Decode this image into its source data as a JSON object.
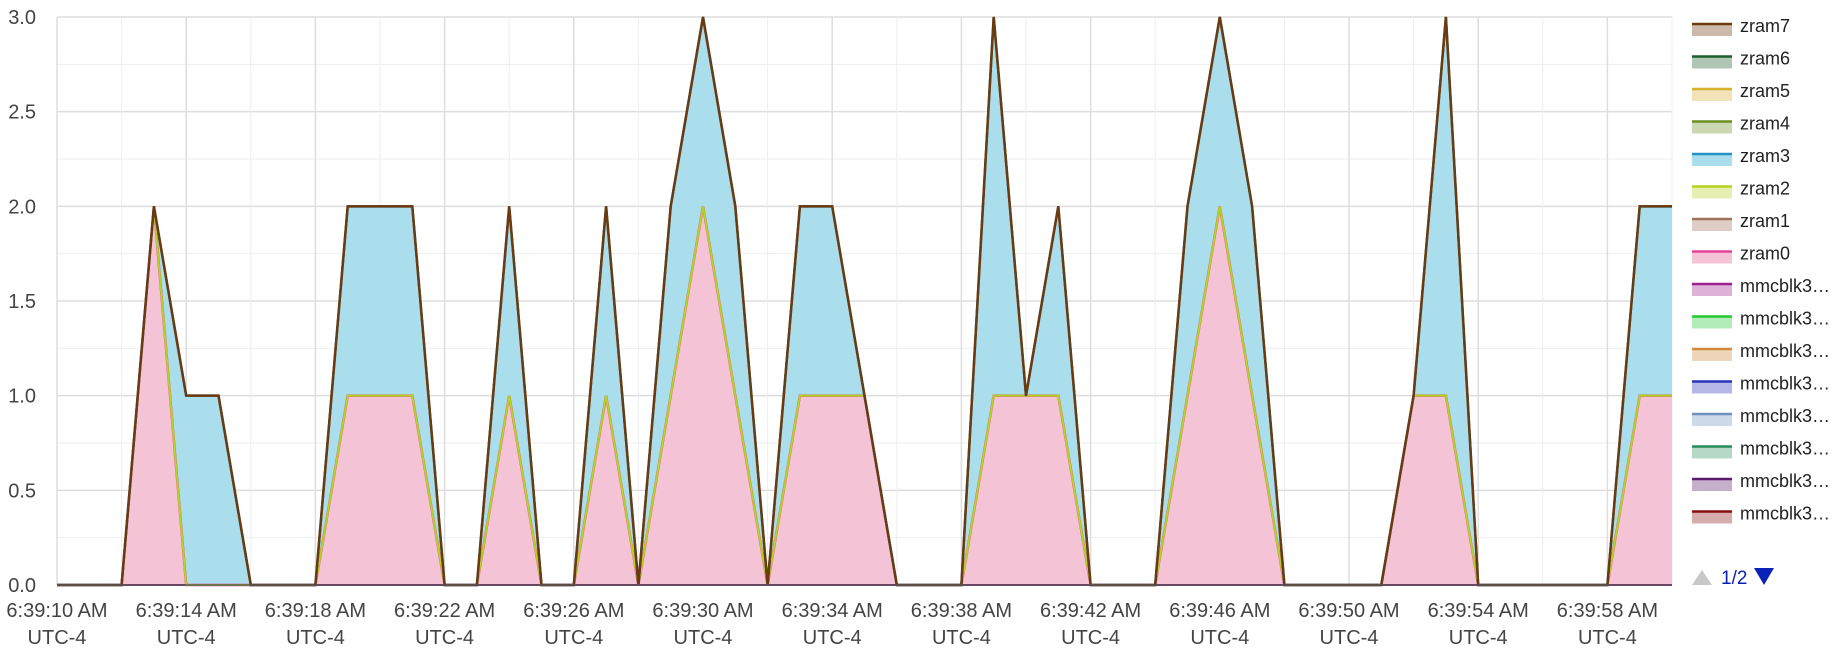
{
  "chart_data": {
    "type": "area",
    "stacked": true,
    "x": [
      "6:39:10",
      "6:39:11",
      "6:39:12",
      "6:39:13",
      "6:39:14",
      "6:39:15",
      "6:39:16",
      "6:39:17",
      "6:39:18",
      "6:39:19",
      "6:39:20",
      "6:39:21",
      "6:39:22",
      "6:39:23",
      "6:39:24",
      "6:39:25",
      "6:39:26",
      "6:39:27",
      "6:39:28",
      "6:39:29",
      "6:39:30",
      "6:39:31",
      "6:39:32",
      "6:39:33",
      "6:39:34",
      "6:39:35",
      "6:39:36",
      "6:39:37",
      "6:39:38",
      "6:39:39",
      "6:39:40",
      "6:39:41",
      "6:39:42",
      "6:39:43",
      "6:39:44",
      "6:39:45",
      "6:39:46",
      "6:39:47",
      "6:39:48",
      "6:39:49",
      "6:39:50",
      "6:39:51",
      "6:39:52",
      "6:39:53",
      "6:39:54",
      "6:39:55",
      "6:39:56",
      "6:39:57",
      "6:39:58",
      "6:39:59",
      "6:40:00"
    ],
    "series": [
      {
        "name": "zram7",
        "color": "#6b3a10",
        "values": [
          0,
          0,
          0,
          0,
          0,
          0,
          0,
          0,
          0,
          0,
          0,
          0,
          0,
          0,
          0,
          0,
          0,
          0,
          0,
          0,
          0,
          0,
          0,
          0,
          0,
          0,
          0,
          0,
          0,
          0,
          0,
          0,
          0,
          0,
          0,
          0,
          0,
          0,
          0,
          0,
          0,
          0,
          0,
          0,
          0,
          0,
          0,
          0,
          0,
          0,
          0
        ]
      },
      {
        "name": "zram6",
        "color": "#1a5c2a",
        "values": [
          0,
          0,
          0,
          0,
          0,
          0,
          0,
          0,
          0,
          0,
          0,
          0,
          0,
          0,
          0,
          0,
          0,
          0,
          0,
          0,
          0,
          0,
          0,
          0,
          0,
          0,
          0,
          0,
          0,
          0,
          0,
          0,
          0,
          0,
          0,
          0,
          0,
          0,
          0,
          0,
          0,
          0,
          0,
          0,
          0,
          0,
          0,
          0,
          0,
          0,
          0
        ]
      },
      {
        "name": "zram5",
        "color": "#d8b030",
        "values": [
          0,
          0,
          0,
          0,
          0,
          0,
          0,
          0,
          0,
          0,
          0,
          0,
          0,
          0,
          0,
          0,
          0,
          0,
          0,
          0,
          0,
          0,
          0,
          0,
          0,
          0,
          0,
          0,
          0,
          0,
          0,
          0,
          0,
          0,
          0,
          0,
          0,
          0,
          0,
          0,
          0,
          0,
          0,
          0,
          0,
          0,
          0,
          0,
          0,
          0,
          0
        ]
      },
      {
        "name": "zram4",
        "color": "#6a8e22",
        "values": [
          0,
          0,
          0,
          0,
          0,
          0,
          0,
          0,
          0,
          0,
          0,
          0,
          0,
          0,
          0,
          0,
          0,
          0,
          0,
          0,
          0,
          0,
          0,
          0,
          0,
          0,
          0,
          0,
          0,
          0,
          0,
          0,
          0,
          0,
          0,
          0,
          0,
          0,
          0,
          0,
          0,
          0,
          0,
          0,
          0,
          0,
          0,
          0,
          0,
          0,
          0
        ]
      },
      {
        "name": "zram3",
        "color": "#2592c8",
        "fill": "#aadeed",
        "values": [
          0,
          0,
          0,
          0,
          1,
          1,
          0,
          0,
          0,
          1,
          1,
          1,
          0,
          0,
          1,
          0,
          0,
          1,
          0,
          1,
          1,
          1,
          0,
          1,
          1,
          0,
          0,
          0,
          0,
          2,
          0,
          1,
          0,
          0,
          0,
          1,
          1,
          1,
          0,
          0,
          0,
          0,
          0,
          2,
          0,
          0,
          0,
          0,
          0,
          1,
          1
        ]
      },
      {
        "name": "zram2",
        "color": "#b8d020",
        "values": [
          0,
          0,
          0,
          0,
          0,
          0,
          0,
          0,
          0,
          0,
          0,
          0,
          0,
          0,
          0,
          0,
          0,
          0,
          0,
          0,
          0,
          0,
          0,
          0,
          0,
          0,
          0,
          0,
          0,
          0,
          0,
          0,
          0,
          0,
          0,
          0,
          0,
          0,
          0,
          0,
          0,
          0,
          0,
          0,
          0,
          0,
          0,
          0,
          0,
          0,
          0
        ]
      },
      {
        "name": "zram1",
        "color": "#a0705a",
        "values": [
          0,
          0,
          0,
          0,
          0,
          0,
          0,
          0,
          0,
          0,
          0,
          0,
          0,
          0,
          0,
          0,
          0,
          0,
          0,
          0,
          0,
          0,
          0,
          0,
          0,
          0,
          0,
          0,
          0,
          0,
          0,
          0,
          0,
          0,
          0,
          0,
          0,
          0,
          0,
          0,
          0,
          0,
          0,
          0,
          0,
          0,
          0,
          0,
          0,
          0,
          0
        ]
      },
      {
        "name": "zram0",
        "color": "#e8439a",
        "fill": "#f5c3d6",
        "values": [
          0,
          0,
          0,
          2,
          0,
          0,
          0,
          0,
          0,
          1,
          1,
          1,
          0,
          0,
          1,
          0,
          0,
          1,
          0,
          1,
          2,
          1,
          0,
          1,
          1,
          1,
          0,
          0,
          0,
          1,
          1,
          1,
          0,
          0,
          0,
          1,
          2,
          1,
          0,
          0,
          0,
          0,
          1,
          1,
          0,
          0,
          0,
          0,
          0,
          1,
          1
        ]
      },
      {
        "name": "mmcblk3…",
        "color": "#a0208f",
        "values": [
          0,
          0,
          0,
          0,
          0,
          0,
          0,
          0,
          0,
          0,
          0,
          0,
          0,
          0,
          0,
          0,
          0,
          0,
          0,
          0,
          0,
          0,
          0,
          0,
          0,
          0,
          0,
          0,
          0,
          0,
          0,
          0,
          0,
          0,
          0,
          0,
          0,
          0,
          0,
          0,
          0,
          0,
          0,
          0,
          0,
          0,
          0,
          0,
          0,
          0,
          0
        ]
      },
      {
        "name": "mmcblk3…",
        "color": "#22c833",
        "values": [
          0,
          0,
          0,
          0,
          0,
          0,
          0,
          0,
          0,
          0,
          0,
          0,
          0,
          0,
          0,
          0,
          0,
          0,
          0,
          0,
          0,
          0,
          0,
          0,
          0,
          0,
          0,
          0,
          0,
          0,
          0,
          0,
          0,
          0,
          0,
          0,
          0,
          0,
          0,
          0,
          0,
          0,
          0,
          0,
          0,
          0,
          0,
          0,
          0,
          0,
          0
        ]
      },
      {
        "name": "mmcblk3…",
        "color": "#d08a3a",
        "values": [
          0,
          0,
          0,
          0,
          0,
          0,
          0,
          0,
          0,
          0,
          0,
          0,
          0,
          0,
          0,
          0,
          0,
          0,
          0,
          0,
          0,
          0,
          0,
          0,
          0,
          0,
          0,
          0,
          0,
          0,
          0,
          0,
          0,
          0,
          0,
          0,
          0,
          0,
          0,
          0,
          0,
          0,
          0,
          0,
          0,
          0,
          0,
          0,
          0,
          0,
          0
        ]
      },
      {
        "name": "mmcblk3…",
        "color": "#2a35b8",
        "values": [
          0,
          0,
          0,
          0,
          0,
          0,
          0,
          0,
          0,
          0,
          0,
          0,
          0,
          0,
          0,
          0,
          0,
          0,
          0,
          0,
          0,
          0,
          0,
          0,
          0,
          0,
          0,
          0,
          0,
          0,
          0,
          0,
          0,
          0,
          0,
          0,
          0,
          0,
          0,
          0,
          0,
          0,
          0,
          0,
          0,
          0,
          0,
          0,
          0,
          0,
          0
        ]
      },
      {
        "name": "mmcblk3…",
        "color": "#6f8fbf",
        "values": [
          0,
          0,
          0,
          0,
          0,
          0,
          0,
          0,
          0,
          0,
          0,
          0,
          0,
          0,
          0,
          0,
          0,
          0,
          0,
          0,
          0,
          0,
          0,
          0,
          0,
          0,
          0,
          0,
          0,
          0,
          0,
          0,
          0,
          0,
          0,
          0,
          0,
          0,
          0,
          0,
          0,
          0,
          0,
          0,
          0,
          0,
          0,
          0,
          0,
          0,
          0
        ]
      },
      {
        "name": "mmcblk3…",
        "color": "#2a8c5c",
        "values": [
          0,
          0,
          0,
          0,
          0,
          0,
          0,
          0,
          0,
          0,
          0,
          0,
          0,
          0,
          0,
          0,
          0,
          0,
          0,
          0,
          0,
          0,
          0,
          0,
          0,
          0,
          0,
          0,
          0,
          0,
          0,
          0,
          0,
          0,
          0,
          0,
          0,
          0,
          0,
          0,
          0,
          0,
          0,
          0,
          0,
          0,
          0,
          0,
          0,
          0,
          0
        ]
      },
      {
        "name": "mmcblk3…",
        "color": "#5a1a6a",
        "values": [
          0,
          0,
          0,
          0,
          0,
          0,
          0,
          0,
          0,
          0,
          0,
          0,
          0,
          0,
          0,
          0,
          0,
          0,
          0,
          0,
          0,
          0,
          0,
          0,
          0,
          0,
          0,
          0,
          0,
          0,
          0,
          0,
          0,
          0,
          0,
          0,
          0,
          0,
          0,
          0,
          0,
          0,
          0,
          0,
          0,
          0,
          0,
          0,
          0,
          0,
          0
        ]
      },
      {
        "name": "mmcblk3…",
        "color": "#8a1010",
        "values": [
          0,
          0,
          0,
          0,
          0,
          0,
          0,
          0,
          0,
          0,
          0,
          0,
          0,
          0,
          0,
          0,
          0,
          0,
          0,
          0,
          0,
          0,
          0,
          0,
          0,
          0,
          0,
          0,
          0,
          0,
          0,
          0,
          0,
          0,
          0,
          0,
          0,
          0,
          0,
          0,
          0,
          0,
          0,
          0,
          0,
          0,
          0,
          0,
          0,
          0,
          0
        ]
      }
    ],
    "ylim": [
      0,
      3
    ],
    "yticks": [
      "0.0",
      "0.5",
      "1.0",
      "1.5",
      "2.0",
      "2.5",
      "3.0"
    ],
    "xticks": [
      {
        "x": "6:39:10",
        "line1": "6:39:10 AM",
        "line2": "UTC-4"
      },
      {
        "x": "6:39:14",
        "line1": "6:39:14 AM",
        "line2": "UTC-4"
      },
      {
        "x": "6:39:18",
        "line1": "6:39:18 AM",
        "line2": "UTC-4"
      },
      {
        "x": "6:39:22",
        "line1": "6:39:22 AM",
        "line2": "UTC-4"
      },
      {
        "x": "6:39:26",
        "line1": "6:39:26 AM",
        "line2": "UTC-4"
      },
      {
        "x": "6:39:30",
        "line1": "6:39:30 AM",
        "line2": "UTC-4"
      },
      {
        "x": "6:39:34",
        "line1": "6:39:34 AM",
        "line2": "UTC-4"
      },
      {
        "x": "6:39:38",
        "line1": "6:39:38 AM",
        "line2": "UTC-4"
      },
      {
        "x": "6:39:42",
        "line1": "6:39:42 AM",
        "line2": "UTC-4"
      },
      {
        "x": "6:39:46",
        "line1": "6:39:46 AM",
        "line2": "UTC-4"
      },
      {
        "x": "6:39:50",
        "line1": "6:39:50 AM",
        "line2": "UTC-4"
      },
      {
        "x": "6:39:54",
        "line1": "6:39:54 AM",
        "line2": "UTC-4"
      },
      {
        "x": "6:39:58",
        "line1": "6:39:58 AM",
        "line2": "UTC-4"
      }
    ],
    "grid": true,
    "legend_position": "right"
  },
  "legend_pager": {
    "page_text": "1/2",
    "prev_icon": "triangle-up-icon",
    "next_icon": "triangle-down-icon",
    "prev_color": "#c8c8c8",
    "next_color": "#0b22b7"
  }
}
